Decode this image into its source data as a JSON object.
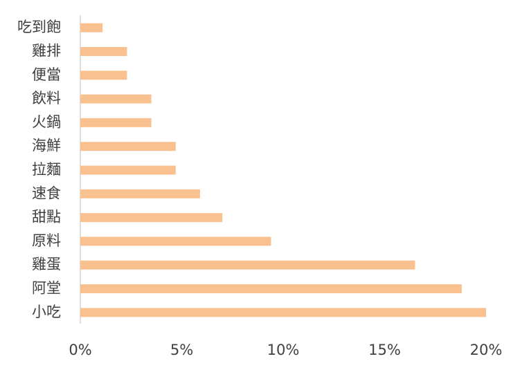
{
  "chart_data": {
    "type": "hbar",
    "categories": [
      "吃到飽",
      "雞排",
      "便當",
      "飲料",
      "火鍋",
      "海鮮",
      "拉麵",
      "速食",
      "甜點",
      "原料",
      "雞蛋",
      "阿堂",
      "小吃"
    ],
    "values": [
      1.1,
      2.3,
      2.3,
      3.5,
      3.5,
      4.7,
      4.7,
      5.9,
      7.0,
      9.4,
      16.5,
      18.8,
      20.0
    ],
    "color": "#f9c18f",
    "xlim": [
      0,
      20
    ],
    "xticks": [
      {
        "value": 0,
        "label": "0%"
      },
      {
        "value": 5,
        "label": "5%"
      },
      {
        "value": 10,
        "label": "10%"
      },
      {
        "value": 15,
        "label": "15%"
      },
      {
        "value": 20,
        "label": "20%"
      }
    ],
    "grid": false
  }
}
